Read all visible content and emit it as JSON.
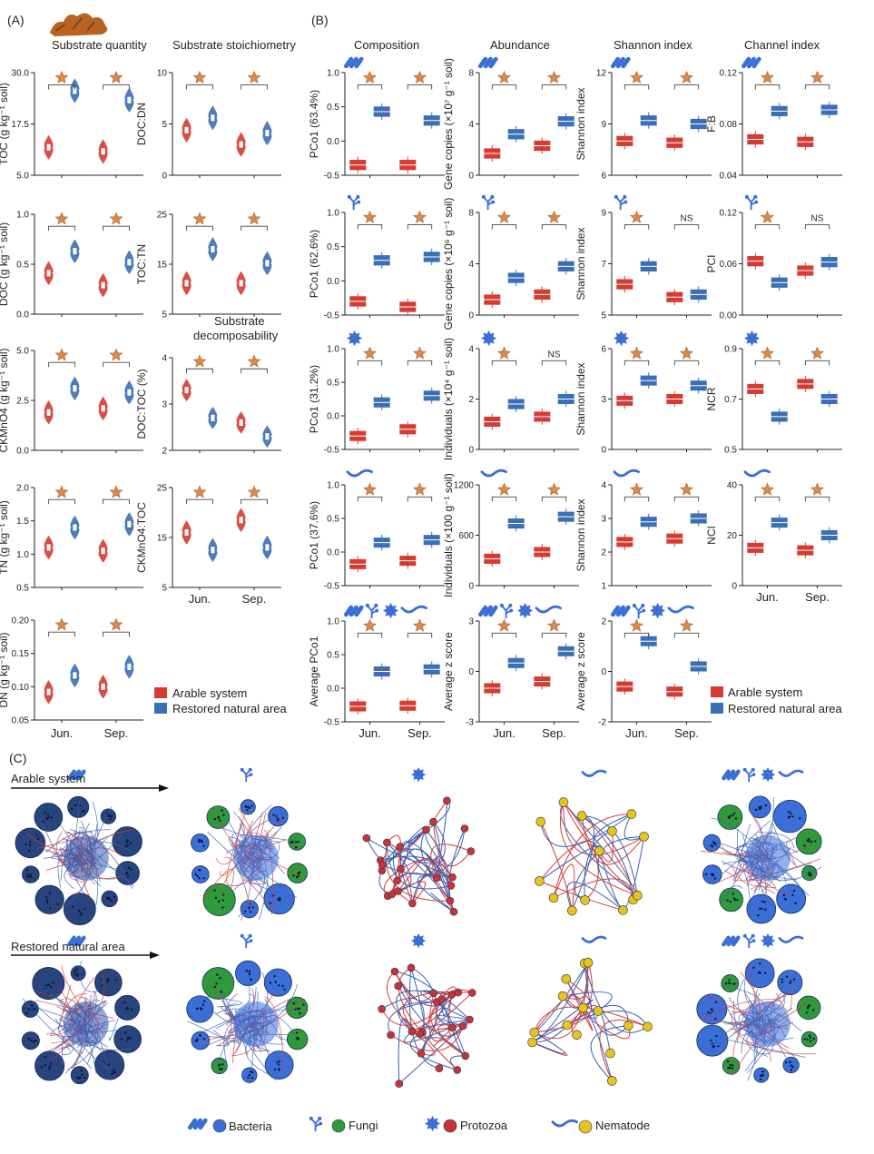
{
  "panels": {
    "a": "(A)",
    "b": "(B)",
    "c": "(C)"
  },
  "colors": {
    "arable": "#d63b32",
    "restored": "#3a6fb5",
    "star": "#d98a4a",
    "bacteria": "#3a6fd8",
    "fungi": "#2f9a3a",
    "protozoa": "#c8323a",
    "nematode": "#e6c41f",
    "network_node": "#28447e"
  },
  "section_titles": {
    "substrate_quantity": "Substrate quantity",
    "substrate_stoichiometry": "Substrate stoichiometry",
    "substrate_decomposability_1": "Substrate",
    "substrate_decomposability_2": "decomposability",
    "composition": "Composition",
    "abundance": "Abundance",
    "shannon": "Shannon index",
    "channel": "Channel index"
  },
  "months": [
    "Jun.",
    "Sep."
  ],
  "sig_marks": {
    "ns": "NS"
  },
  "legend": {
    "arable": "Arable system",
    "restored": "Restored natural area"
  },
  "network_rows": {
    "arable": "Arable system",
    "restored": "Restored natural area"
  },
  "network_legend": [
    "Bacteria",
    "Fungi",
    "Protozoa",
    "Nematode"
  ],
  "chart_data": [
    {
      "id": "toc",
      "type": "violin",
      "ylabel": "TOC (g kg⁻¹ soil)",
      "ylim": [
        5,
        30
      ],
      "ticks": [
        "5.0",
        "17.5",
        "30.0"
      ],
      "series": [
        {
          "name": "Arable system",
          "values": [
            11.8,
            10.8
          ]
        },
        {
          "name": "Restored natural area",
          "values": [
            25.6,
            23.3
          ]
        }
      ],
      "sig": [
        "*",
        "*"
      ]
    },
    {
      "id": "doc_dn",
      "type": "violin",
      "ylabel": "DOC:DN",
      "ylim": [
        0,
        10
      ],
      "ticks": [
        "0",
        "5",
        "10"
      ],
      "series": [
        {
          "name": "Arable system",
          "values": [
            4.4,
            3.0
          ]
        },
        {
          "name": "Restored natural area",
          "values": [
            5.6,
            4.1
          ]
        }
      ],
      "sig": [
        "*",
        "*"
      ]
    },
    {
      "id": "doc",
      "type": "violin",
      "ylabel": "DOC (g kg⁻¹ soil)",
      "ylim": [
        0,
        1
      ],
      "ticks": [
        "0.0",
        "0.5",
        "1.0"
      ],
      "series": [
        {
          "name": "Arable system",
          "values": [
            0.41,
            0.29
          ]
        },
        {
          "name": "Restored natural area",
          "values": [
            0.63,
            0.52
          ]
        }
      ],
      "sig": [
        "*",
        "*"
      ]
    },
    {
      "id": "toc_tn",
      "type": "violin",
      "ylabel": "TOC:TN",
      "ylim": [
        5,
        25
      ],
      "ticks": [
        "5",
        "15",
        "25"
      ],
      "series": [
        {
          "name": "Arable system",
          "values": [
            11.2,
            11.2
          ]
        },
        {
          "name": "Restored natural area",
          "values": [
            18.0,
            15.2
          ]
        }
      ],
      "sig": [
        "*",
        "*"
      ]
    },
    {
      "id": "ckmno4",
      "type": "violin",
      "ylabel": "CKMnO4 (g kg⁻¹ soil)",
      "ylim": [
        0,
        5
      ],
      "ticks": [
        "0.0",
        "2.5",
        "5.0"
      ],
      "series": [
        {
          "name": "Arable system",
          "values": [
            1.9,
            2.1
          ]
        },
        {
          "name": "Restored natural area",
          "values": [
            3.1,
            2.9
          ]
        }
      ],
      "sig": [
        "*",
        "*"
      ]
    },
    {
      "id": "doc_toc",
      "type": "violin",
      "ylabel": "DOC:TOC (%)",
      "ylim": [
        2,
        4
      ],
      "ticks": [
        "2",
        "3",
        "4"
      ],
      "series": [
        {
          "name": "Arable system",
          "values": [
            3.3,
            2.6
          ]
        },
        {
          "name": "Restored natural area",
          "values": [
            2.7,
            2.3
          ]
        }
      ],
      "sig": [
        "*",
        "*"
      ]
    },
    {
      "id": "tn",
      "type": "violin",
      "ylabel": "TN (g kg⁻¹ soil)",
      "ylim": [
        0.5,
        2
      ],
      "ticks": [
        "0.5",
        "1.0",
        "1.5",
        "2.0"
      ],
      "series": [
        {
          "name": "Arable system",
          "values": [
            1.1,
            1.05
          ]
        },
        {
          "name": "Restored natural area",
          "values": [
            1.4,
            1.45
          ]
        }
      ],
      "sig": [
        "*",
        "*"
      ]
    },
    {
      "id": "ckmno4_toc",
      "type": "violin",
      "ylabel": "CKMnO4:TOC",
      "ylim": [
        5,
        25
      ],
      "ticks": [
        "5",
        "15",
        "25"
      ],
      "series": [
        {
          "name": "Arable system",
          "values": [
            16,
            18.5
          ]
        },
        {
          "name": "Restored natural area",
          "values": [
            12.5,
            13
          ]
        }
      ],
      "sig": [
        "*",
        "*"
      ]
    },
    {
      "id": "dn",
      "type": "violin",
      "ylabel": "DN (g kg⁻¹ soil)",
      "ylim": [
        0.05,
        0.2
      ],
      "ticks": [
        "0.05",
        "0.10",
        "0.15",
        "0.20"
      ],
      "series": [
        {
          "name": "Arable system",
          "values": [
            0.092,
            0.1
          ]
        },
        {
          "name": "Restored natural area",
          "values": [
            0.117,
            0.13
          ]
        }
      ],
      "sig": [
        "*",
        "*"
      ]
    },
    {
      "id": "bac_pco",
      "type": "box",
      "ylabel": "PCo1 (63.4%)",
      "ylim": [
        -0.5,
        1
      ],
      "ticks": [
        "-0.5",
        "0.0",
        "0.5",
        "1.0"
      ],
      "series": [
        {
          "name": "Arable system",
          "values": [
            -0.35,
            -0.35
          ]
        },
        {
          "name": "Restored natural area",
          "values": [
            0.43,
            0.3
          ]
        }
      ],
      "sig": [
        "*",
        "*"
      ]
    },
    {
      "id": "bac_abund",
      "type": "box",
      "ylabel": "Gene copies (×10⁷ g⁻¹ soil)",
      "ylim": [
        0,
        8
      ],
      "ticks": [
        "0",
        "4",
        "8"
      ],
      "series": [
        {
          "name": "Arable system",
          "values": [
            1.7,
            2.3
          ]
        },
        {
          "name": "Restored natural area",
          "values": [
            3.2,
            4.2
          ]
        }
      ],
      "sig": [
        "*",
        "*"
      ]
    },
    {
      "id": "bac_shannon",
      "type": "box",
      "ylabel": "Shannon index",
      "ylim": [
        6,
        12
      ],
      "ticks": [
        "6",
        "9",
        "12"
      ],
      "series": [
        {
          "name": "Arable system",
          "values": [
            8.0,
            7.9
          ]
        },
        {
          "name": "Restored natural area",
          "values": [
            9.2,
            9.0
          ]
        }
      ],
      "sig": [
        "*",
        "*"
      ]
    },
    {
      "id": "fb",
      "type": "box",
      "ylabel": "F:B",
      "ylim": [
        0.04,
        0.12
      ],
      "ticks": [
        "0.04",
        "0.08",
        "0.12"
      ],
      "series": [
        {
          "name": "Arable system",
          "values": [
            0.068,
            0.066
          ]
        },
        {
          "name": "Restored natural area",
          "values": [
            0.09,
            0.091
          ]
        }
      ],
      "sig": [
        "*",
        "*"
      ]
    },
    {
      "id": "fun_pco",
      "type": "box",
      "ylabel": "PCo1 (62.6%)",
      "ylim": [
        -0.5,
        1
      ],
      "ticks": [
        "-0.5",
        "0.0",
        "0.5",
        "1.0"
      ],
      "series": [
        {
          "name": "Arable system",
          "values": [
            -0.3,
            -0.38
          ]
        },
        {
          "name": "Restored natural area",
          "values": [
            0.3,
            0.35
          ]
        }
      ],
      "sig": [
        "*",
        "*"
      ]
    },
    {
      "id": "fun_abund",
      "type": "box",
      "ylabel": "Gene copies (×10⁶ g⁻¹ soil)",
      "ylim": [
        0,
        8
      ],
      "ticks": [
        "0",
        "4",
        "8"
      ],
      "series": [
        {
          "name": "Arable system",
          "values": [
            1.2,
            1.6
          ]
        },
        {
          "name": "Restored natural area",
          "values": [
            2.9,
            3.8
          ]
        }
      ],
      "sig": [
        "*",
        "*"
      ]
    },
    {
      "id": "fun_shannon",
      "type": "box",
      "ylabel": "Shannon index",
      "ylim": [
        5,
        9
      ],
      "ticks": [
        "5",
        "7",
        "9"
      ],
      "series": [
        {
          "name": "Arable system",
          "values": [
            6.2,
            5.7
          ]
        },
        {
          "name": "Restored natural area",
          "values": [
            6.9,
            5.8
          ]
        }
      ],
      "sig": [
        "*",
        "NS"
      ]
    },
    {
      "id": "pci",
      "type": "box",
      "ylabel": "PCI",
      "ylim": [
        0,
        0.12
      ],
      "ticks": [
        "0.00",
        "0.06",
        "0.12"
      ],
      "series": [
        {
          "name": "Arable system",
          "values": [
            0.063,
            0.052
          ]
        },
        {
          "name": "Restored natural area",
          "values": [
            0.038,
            0.062
          ]
        }
      ],
      "sig": [
        "*",
        "NS"
      ]
    },
    {
      "id": "pro_pco",
      "type": "box",
      "ylabel": "PCo1 (31.2%)",
      "ylim": [
        -0.5,
        1
      ],
      "ticks": [
        "-0.5",
        "0.0",
        "0.5",
        "1.0"
      ],
      "series": [
        {
          "name": "Arable system",
          "values": [
            -0.3,
            -0.2
          ]
        },
        {
          "name": "Restored natural area",
          "values": [
            0.2,
            0.3
          ]
        }
      ],
      "sig": [
        "*",
        "*"
      ]
    },
    {
      "id": "pro_abund",
      "type": "box",
      "ylabel": "Individuals (×10⁴ g⁻¹ soil)",
      "ylim": [
        0,
        4
      ],
      "ticks": [
        "0",
        "2",
        "4"
      ],
      "series": [
        {
          "name": "Arable system",
          "values": [
            1.1,
            1.3
          ]
        },
        {
          "name": "Restored natural area",
          "values": [
            1.8,
            2.0
          ]
        }
      ],
      "sig": [
        "*",
        "NS"
      ]
    },
    {
      "id": "pro_shannon",
      "type": "box",
      "ylabel": "Shannon index",
      "ylim": [
        0,
        6
      ],
      "ticks": [
        "0",
        "3",
        "6"
      ],
      "series": [
        {
          "name": "Arable system",
          "values": [
            2.9,
            3.0
          ]
        },
        {
          "name": "Restored natural area",
          "values": [
            4.1,
            3.8
          ]
        }
      ],
      "sig": [
        "*",
        "*"
      ]
    },
    {
      "id": "ncr",
      "type": "box",
      "ylabel": "NCR",
      "ylim": [
        0.5,
        0.9
      ],
      "ticks": [
        "0.5",
        "0.7",
        "0.9"
      ],
      "series": [
        {
          "name": "Arable system",
          "values": [
            0.74,
            0.76
          ]
        },
        {
          "name": "Restored natural area",
          "values": [
            0.63,
            0.7
          ]
        }
      ],
      "sig": [
        "*",
        "*"
      ]
    },
    {
      "id": "nem_pco",
      "type": "box",
      "ylabel": "PCo1 (37.6%)",
      "ylim": [
        -0.5,
        1
      ],
      "ticks": [
        "-0.5",
        "0.0",
        "0.5",
        "1.0"
      ],
      "series": [
        {
          "name": "Arable system",
          "values": [
            -0.18,
            -0.13
          ]
        },
        {
          "name": "Restored natural area",
          "values": [
            0.14,
            0.18
          ]
        }
      ],
      "sig": [
        "*",
        "*"
      ]
    },
    {
      "id": "nem_abund",
      "type": "box",
      "ylabel": "Individuals (×100 g⁻¹ soil)",
      "ylim": [
        0,
        1200
      ],
      "ticks": [
        "0",
        "600",
        "1200"
      ],
      "series": [
        {
          "name": "Arable system",
          "values": [
            320,
            400
          ]
        },
        {
          "name": "Restored natural area",
          "values": [
            740,
            820
          ]
        }
      ],
      "sig": [
        "*",
        "*"
      ]
    },
    {
      "id": "nem_shannon",
      "type": "box",
      "ylabel": "Shannon index",
      "ylim": [
        1,
        4
      ],
      "ticks": [
        "1",
        "2",
        "3",
        "4"
      ],
      "series": [
        {
          "name": "Arable system",
          "values": [
            2.3,
            2.4
          ]
        },
        {
          "name": "Restored natural area",
          "values": [
            2.9,
            3.0
          ]
        }
      ],
      "sig": [
        "*",
        "*"
      ]
    },
    {
      "id": "nci",
      "type": "box",
      "ylabel": "NCI",
      "ylim": [
        0,
        40
      ],
      "ticks": [
        "0",
        "20",
        "40"
      ],
      "series": [
        {
          "name": "Arable system",
          "values": [
            15,
            14
          ]
        },
        {
          "name": "Restored natural area",
          "values": [
            25,
            20
          ]
        }
      ],
      "sig": [
        "*",
        "*"
      ]
    },
    {
      "id": "avg_pco",
      "type": "box",
      "ylabel": "Average PCo1",
      "ylim": [
        -0.5,
        1
      ],
      "ticks": [
        "-0.5",
        "0.0",
        "0.5",
        "1.0"
      ],
      "series": [
        {
          "name": "Arable system",
          "values": [
            -0.27,
            -0.26
          ]
        },
        {
          "name": "Restored natural area",
          "values": [
            0.25,
            0.28
          ]
        }
      ],
      "sig": [
        "*",
        "*"
      ]
    },
    {
      "id": "avg_z_abund",
      "type": "box",
      "ylabel": "Average z score",
      "ylim": [
        -3,
        3
      ],
      "ticks": [
        "-3",
        "0",
        "3"
      ],
      "series": [
        {
          "name": "Arable system",
          "values": [
            -1.0,
            -0.6
          ]
        },
        {
          "name": "Restored natural area",
          "values": [
            0.5,
            1.2
          ]
        }
      ],
      "sig": [
        "*",
        "*"
      ]
    },
    {
      "id": "avg_z_shannon",
      "type": "box",
      "ylabel": "Average z score",
      "ylim": [
        -2,
        2
      ],
      "ticks": [
        "-2",
        "0",
        "2"
      ],
      "series": [
        {
          "name": "Arable system",
          "values": [
            -0.6,
            -0.8
          ]
        },
        {
          "name": "Restored natural area",
          "values": [
            1.2,
            0.2
          ]
        }
      ],
      "sig": [
        "*",
        "*"
      ]
    }
  ]
}
